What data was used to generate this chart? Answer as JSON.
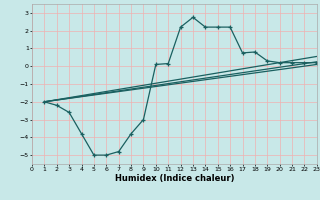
{
  "xlabel": "Humidex (Indice chaleur)",
  "xlim": [
    0,
    23
  ],
  "ylim": [
    -5.5,
    3.5
  ],
  "yticks": [
    -5,
    -4,
    -3,
    -2,
    -1,
    0,
    1,
    2,
    3
  ],
  "xticks": [
    0,
    1,
    2,
    3,
    4,
    5,
    6,
    7,
    8,
    9,
    10,
    11,
    12,
    13,
    14,
    15,
    16,
    17,
    18,
    19,
    20,
    21,
    22,
    23
  ],
  "bg_color": "#c8e8e8",
  "grid_color": "#f0b0b0",
  "line_color": "#1a6060",
  "curve_main_x": [
    1,
    2,
    3,
    4,
    5,
    6,
    7,
    8,
    9,
    10,
    11,
    12,
    13,
    14,
    15,
    16,
    17,
    18,
    19,
    20,
    21,
    22,
    23
  ],
  "curve_main_y": [
    -2.0,
    -2.2,
    -2.6,
    -3.8,
    -5.0,
    -5.0,
    -4.8,
    -3.8,
    -3.0,
    0.1,
    0.15,
    2.2,
    2.75,
    2.2,
    2.2,
    2.2,
    0.75,
    0.8,
    0.3,
    0.2,
    0.2,
    0.2,
    0.2
  ],
  "line1_x": [
    1,
    23
  ],
  "line1_y": [
    -2.0,
    0.1
  ],
  "line2_x": [
    1,
    23
  ],
  "line2_y": [
    -2.0,
    0.25
  ],
  "line3_x": [
    1,
    23
  ],
  "line3_y": [
    -2.0,
    0.55
  ]
}
